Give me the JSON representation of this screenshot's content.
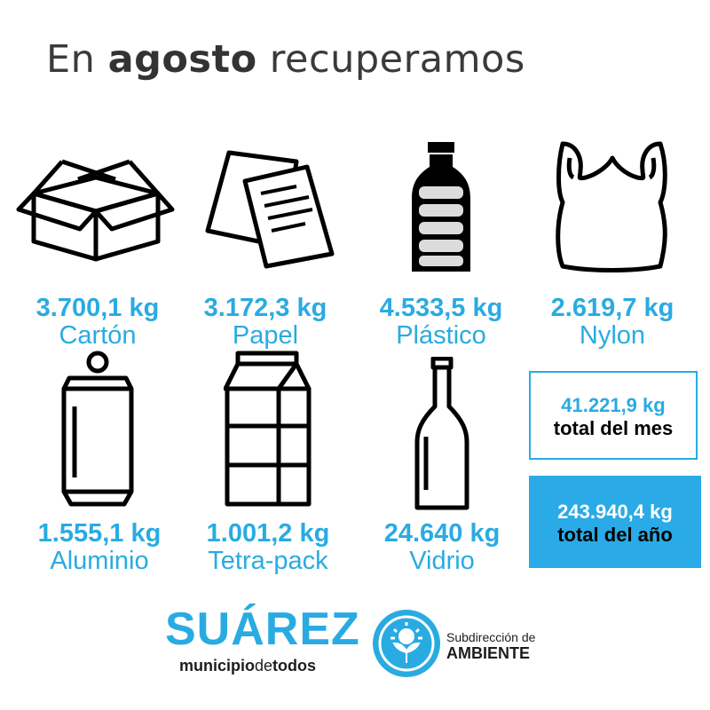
{
  "header": {
    "title_prefix": "En ",
    "title_bold": "agosto",
    "title_suffix": " recuperamos"
  },
  "materials": [
    {
      "amount": "3.700,1 kg",
      "label": "Cartón",
      "icon": "box-icon"
    },
    {
      "amount": "3.172,3 kg",
      "label": "Papel",
      "icon": "paper-sheets-icon"
    },
    {
      "amount": "4.533,5 kg",
      "label": "Plástico",
      "icon": "plastic-bottle-icon"
    },
    {
      "amount": "2.619,7 kg",
      "label": "Nylon",
      "icon": "plastic-bag-icon"
    },
    {
      "amount": "1.555,1 kg",
      "label": "Aluminio",
      "icon": "aluminum-can-icon"
    },
    {
      "amount": "1.001,2 kg",
      "label": "Tetra-pack",
      "icon": "milk-carton-icon"
    },
    {
      "amount": "24.640 kg",
      "label": "Vidrio",
      "icon": "glass-bottle-icon"
    }
  ],
  "totals": {
    "month_amount": "41.221,9 kg",
    "month_label": "total del mes",
    "year_amount": "243.940,4 kg",
    "year_label": "total del año"
  },
  "footer": {
    "logo_main": "SUÁREZ",
    "logo_sub_bold": "municipio",
    "logo_sub_mid": "de",
    "logo_sub_end": "todos",
    "agency_prefix": "Subdirección de",
    "agency_name": "AMBIENTE"
  },
  "colors": {
    "accent": "#29abe2",
    "text_dark": "#333333"
  }
}
